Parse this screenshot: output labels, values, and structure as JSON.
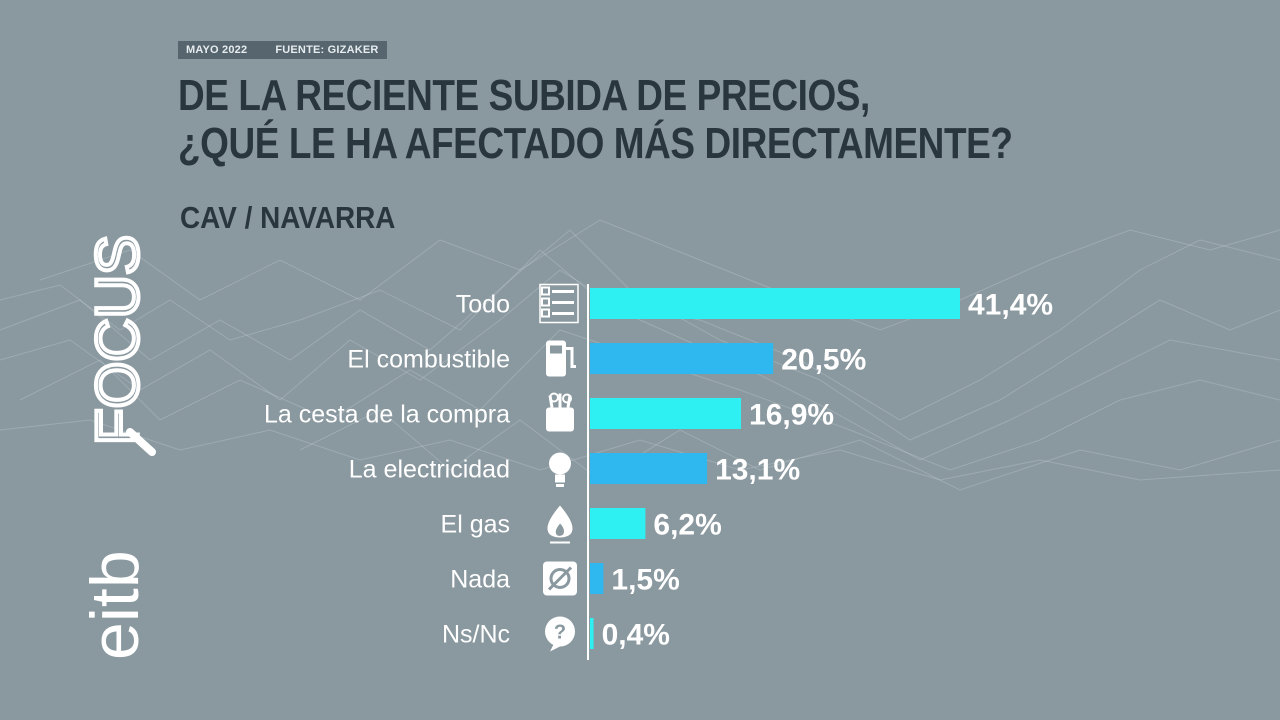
{
  "header": {
    "date": "MAYO 2022",
    "source": "FUENTE: GIZAKER",
    "title_line1": "DE LA RECIENTE SUBIDA DE PRECIOS,",
    "title_line2": "¿QUÉ LE HA AFECTADO MÁS DIRECTAMENTE?",
    "subtitle": "CAV / NAVARRA"
  },
  "brand": {
    "prefix": "eitb",
    "suffix": "FOCUS"
  },
  "colors": {
    "background": "#8a989f",
    "bar_cyan": "#2ef0f2",
    "bar_blue": "#2eb8ef",
    "title": "#2a363e",
    "text_light": "#ffffff"
  },
  "chart_data": {
    "type": "bar",
    "orientation": "horizontal",
    "title": "DE LA RECIENTE SUBIDA DE PRECIOS, ¿QUÉ LE HA AFECTADO MÁS DIRECTAMENTE?",
    "subtitle": "CAV / NAVARRA",
    "categories": [
      "Todo",
      "El combustible",
      "La cesta de la compra",
      "La electricidad",
      "El gas",
      "Nada",
      "Ns/Nc"
    ],
    "values": [
      41.4,
      20.5,
      16.9,
      13.1,
      6.2,
      1.5,
      0.4
    ],
    "value_labels": [
      "41,4%",
      "20,5%",
      "16,9%",
      "13,1%",
      "6,2%",
      "1,5%",
      "0,4%"
    ],
    "icons": [
      "checklist-icon",
      "fuel-pump-icon",
      "shopping-bag-icon",
      "lightbulb-icon",
      "gas-flame-icon",
      "empty-set-icon",
      "question-icon"
    ],
    "unit": "%",
    "xlim": [
      0,
      45
    ]
  }
}
